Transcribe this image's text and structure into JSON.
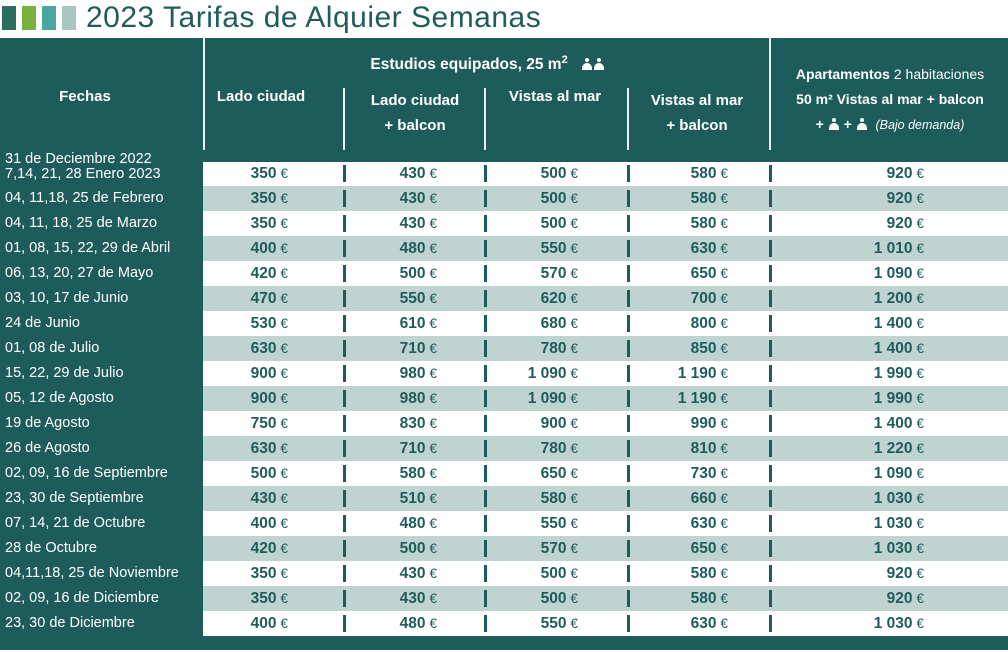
{
  "title": "2023 Tarifas de Alquier Semanas",
  "header": {
    "fechas": "Fechas",
    "estudios": "Estudios equipados, 25 m",
    "estudios_sup": "2",
    "col1": "Lado ciudad",
    "col2_line1": "Lado ciudad",
    "col2_line2": "+ balcon",
    "col3": "Vistas al mar",
    "col4_line1": "Vistas al mar",
    "col4_line2": "+ balcon",
    "apt_bold": "Apartamentos",
    "apt_light": " 2 habitaciones",
    "apt_line2": "50 m² Vistas al mar + balcon",
    "apt_plus": "+",
    "apt_note": "(Bajo demanda)"
  },
  "currency": "€",
  "colors": {
    "dark": "#1d5c5a",
    "shade": "#bfd3d0",
    "text": "#1f5c5a"
  },
  "rows": [
    {
      "date1": "31 de Deciembre 2022",
      "date2": "7,14, 21, 28 Enero 2023",
      "v": [
        "350",
        "430",
        "500",
        "580",
        "920"
      ]
    },
    {
      "date1": "04, 11,18, 25 de Febrero",
      "v": [
        "350",
        "430",
        "500",
        "580",
        "920"
      ]
    },
    {
      "date1": "04, 11, 18, 25 de Marzo",
      "v": [
        "350",
        "430",
        "500",
        "580",
        "920"
      ]
    },
    {
      "date1": "01, 08, 15, 22, 29 de Abril",
      "v": [
        "400",
        "480",
        "550",
        "630",
        "1 010"
      ]
    },
    {
      "date1": "06, 13, 20, 27 de Mayo",
      "v": [
        "420",
        "500",
        "570",
        "650",
        "1 090"
      ]
    },
    {
      "date1": "03, 10, 17 de Junio",
      "v": [
        "470",
        "550",
        "620",
        "700",
        "1 200"
      ]
    },
    {
      "date1": "24 de Junio",
      "v": [
        "530",
        "610",
        "680",
        "800",
        "1 400"
      ]
    },
    {
      "date1": "01, 08 de Julio",
      "v": [
        "630",
        "710",
        "780",
        "850",
        "1 400"
      ]
    },
    {
      "date1": "15, 22, 29 de Julio",
      "v": [
        "900",
        "980",
        "1 090",
        "1 190",
        "1 990"
      ]
    },
    {
      "date1": "05, 12 de Agosto",
      "v": [
        "900",
        "980",
        "1 090",
        "1 190",
        "1 990"
      ]
    },
    {
      "date1": "19 de Agosto",
      "v": [
        "750",
        "830",
        "900",
        "990",
        "1 400"
      ]
    },
    {
      "date1": "26 de Agosto",
      "v": [
        "630",
        "710",
        "780",
        "810",
        "1 220"
      ]
    },
    {
      "date1": "02, 09, 16 de Septiembre",
      "v": [
        "500",
        "580",
        "650",
        "730",
        "1 090"
      ]
    },
    {
      "date1": "23, 30 de Septiembre",
      "v": [
        "430",
        "510",
        "580",
        "660",
        "1 030"
      ]
    },
    {
      "date1": "07, 14, 21 de Octubre",
      "v": [
        "400",
        "480",
        "550",
        "630",
        "1 030"
      ]
    },
    {
      "date1": "28 de Octubre",
      "v": [
        "420",
        "500",
        "570",
        "650",
        "1 030"
      ]
    },
    {
      "date1": "04,11,18, 25 de Noviembre",
      "v": [
        "350",
        "430",
        "500",
        "580",
        "920"
      ]
    },
    {
      "date1": "02, 09, 16 de Diciembre",
      "v": [
        "350",
        "430",
        "500",
        "580",
        "920"
      ]
    },
    {
      "date1": "23, 30  de Diciembre",
      "v": [
        "400",
        "480",
        "550",
        "630",
        "1 030"
      ]
    }
  ]
}
